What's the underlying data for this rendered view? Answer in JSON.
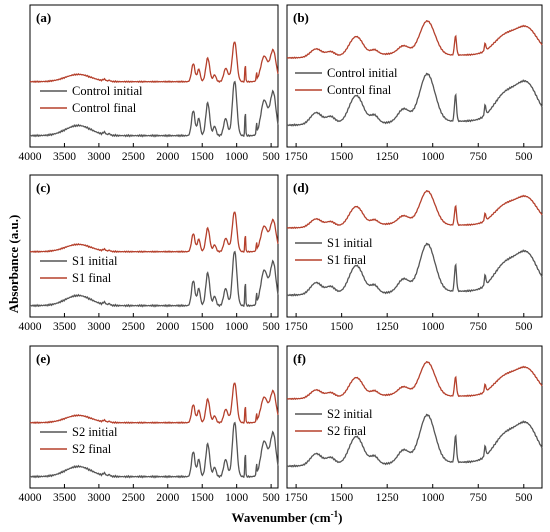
{
  "figure": {
    "ylabel": "Absorbance (a.u.)",
    "xlabel": "Wavenumber (cm",
    "xlabel_sup": "-1",
    "xlabel_end": ")"
  },
  "colors": {
    "initial": "#555555",
    "final": "#b5402c"
  },
  "chart_data": [
    {
      "type": "line",
      "panel": "(a)",
      "xlim": [
        4000,
        400
      ],
      "ticks": [
        4000,
        3500,
        3000,
        2500,
        2000,
        1500,
        1000,
        500
      ],
      "series": [
        {
          "name": "Control initial",
          "color": "#555555"
        },
        {
          "name": "Control final",
          "color": "#b5402c"
        }
      ]
    },
    {
      "type": "line",
      "panel": "(b)",
      "xlim": [
        1800,
        400
      ],
      "ticks": [
        1750,
        1500,
        1250,
        1000,
        750,
        500
      ],
      "series": [
        {
          "name": "Control initial",
          "color": "#555555"
        },
        {
          "name": "Control final",
          "color": "#b5402c"
        }
      ]
    },
    {
      "type": "line",
      "panel": "(c)",
      "xlim": [
        4000,
        400
      ],
      "ticks": [
        4000,
        3500,
        3000,
        2500,
        2000,
        1500,
        1000,
        500
      ],
      "series": [
        {
          "name": "S1 initial",
          "color": "#555555"
        },
        {
          "name": "S1 final",
          "color": "#b5402c"
        }
      ]
    },
    {
      "type": "line",
      "panel": "(d)",
      "xlim": [
        1800,
        400
      ],
      "ticks": [
        1750,
        1500,
        1250,
        1000,
        750,
        500
      ],
      "series": [
        {
          "name": "S1 initial",
          "color": "#555555"
        },
        {
          "name": "S1 final",
          "color": "#b5402c"
        }
      ]
    },
    {
      "type": "line",
      "panel": "(e)",
      "xlim": [
        4000,
        400
      ],
      "ticks": [
        4000,
        3500,
        3000,
        2500,
        2000,
        1500,
        1000,
        500
      ],
      "series": [
        {
          "name": "S2 initial",
          "color": "#555555"
        },
        {
          "name": "S2 final",
          "color": "#b5402c"
        }
      ]
    },
    {
      "type": "line",
      "panel": "(f)",
      "xlim": [
        1800,
        400
      ],
      "ticks": [
        1750,
        1500,
        1250,
        1000,
        750,
        500
      ],
      "series": [
        {
          "name": "S2 initial",
          "color": "#555555"
        },
        {
          "name": "S2 final",
          "color": "#b5402c"
        }
      ]
    }
  ]
}
